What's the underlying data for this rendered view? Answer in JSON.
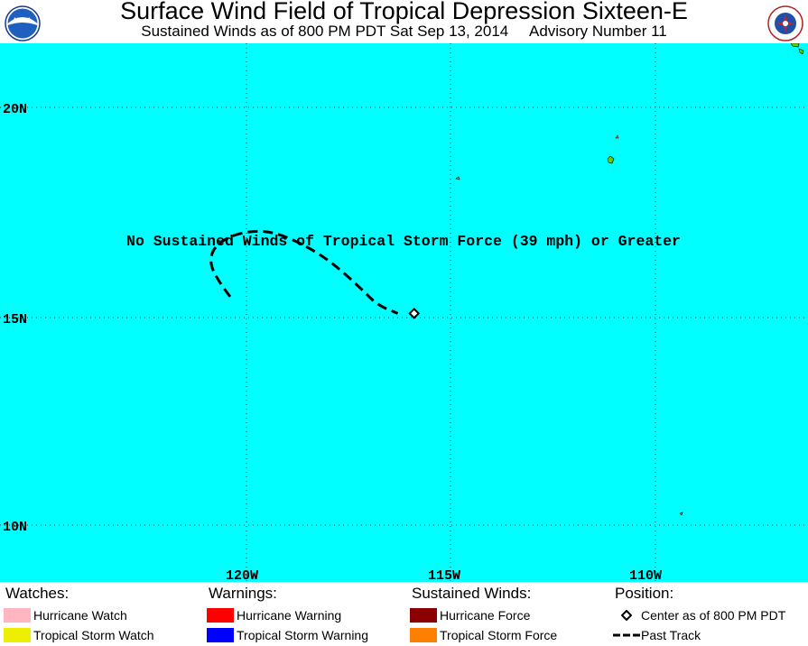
{
  "header": {
    "title": "Surface Wind Field of Tropical Depression Sixteen-E",
    "subtitle_time": "Sustained Winds as of 800 PM PDT Sat Sep 13, 2014",
    "subtitle_advisory": "Advisory Number 11",
    "left_logo_text": "NOAA"
  },
  "map": {
    "ocean_color": "#00ffff",
    "land_color": "#66cc00",
    "lat_labels": [
      "20N",
      "15N",
      "10N"
    ],
    "lon_labels": [
      "120W",
      "115W",
      "110W"
    ],
    "message": "No Sustained Winds of Tropical Storm Force (39 mph) or Greater",
    "past_track_points": [
      {
        "lon": -120.4,
        "lat": 15.5
      },
      {
        "lon": -120.7,
        "lat": 15.9
      },
      {
        "lon": -120.9,
        "lat": 16.3
      },
      {
        "lon": -120.8,
        "lat": 16.7
      },
      {
        "lon": -120.3,
        "lat": 17.0
      },
      {
        "lon": -119.6,
        "lat": 17.1
      },
      {
        "lon": -118.9,
        "lat": 16.9
      },
      {
        "lon": -118.0,
        "lat": 16.4
      },
      {
        "lon": -117.2,
        "lat": 15.7
      },
      {
        "lon": -116.8,
        "lat": 15.3
      },
      {
        "lon": -116.3,
        "lat": 15.1
      }
    ],
    "center": {
      "lon": -115.9,
      "lat": 15.1
    }
  },
  "legend": {
    "watches": {
      "heading": "Watches:",
      "items": [
        {
          "label": "Hurricane Watch",
          "color": "#ffb6c1"
        },
        {
          "label": "Tropical Storm Watch",
          "color": "#eeee00"
        }
      ]
    },
    "warnings": {
      "heading": "Warnings:",
      "items": [
        {
          "label": "Hurricane Warning",
          "color": "#ff0000"
        },
        {
          "label": "Tropical Storm Warning",
          "color": "#0000ff"
        }
      ]
    },
    "winds": {
      "heading": "Sustained Winds:",
      "items": [
        {
          "label": "Hurricane Force",
          "color": "#8b0000"
        },
        {
          "label": "Tropical Storm Force",
          "color": "#ff8000"
        }
      ]
    },
    "position": {
      "heading": "Position:",
      "center_label": "Center as of 800 PM PDT",
      "track_label": "Past Track"
    }
  }
}
